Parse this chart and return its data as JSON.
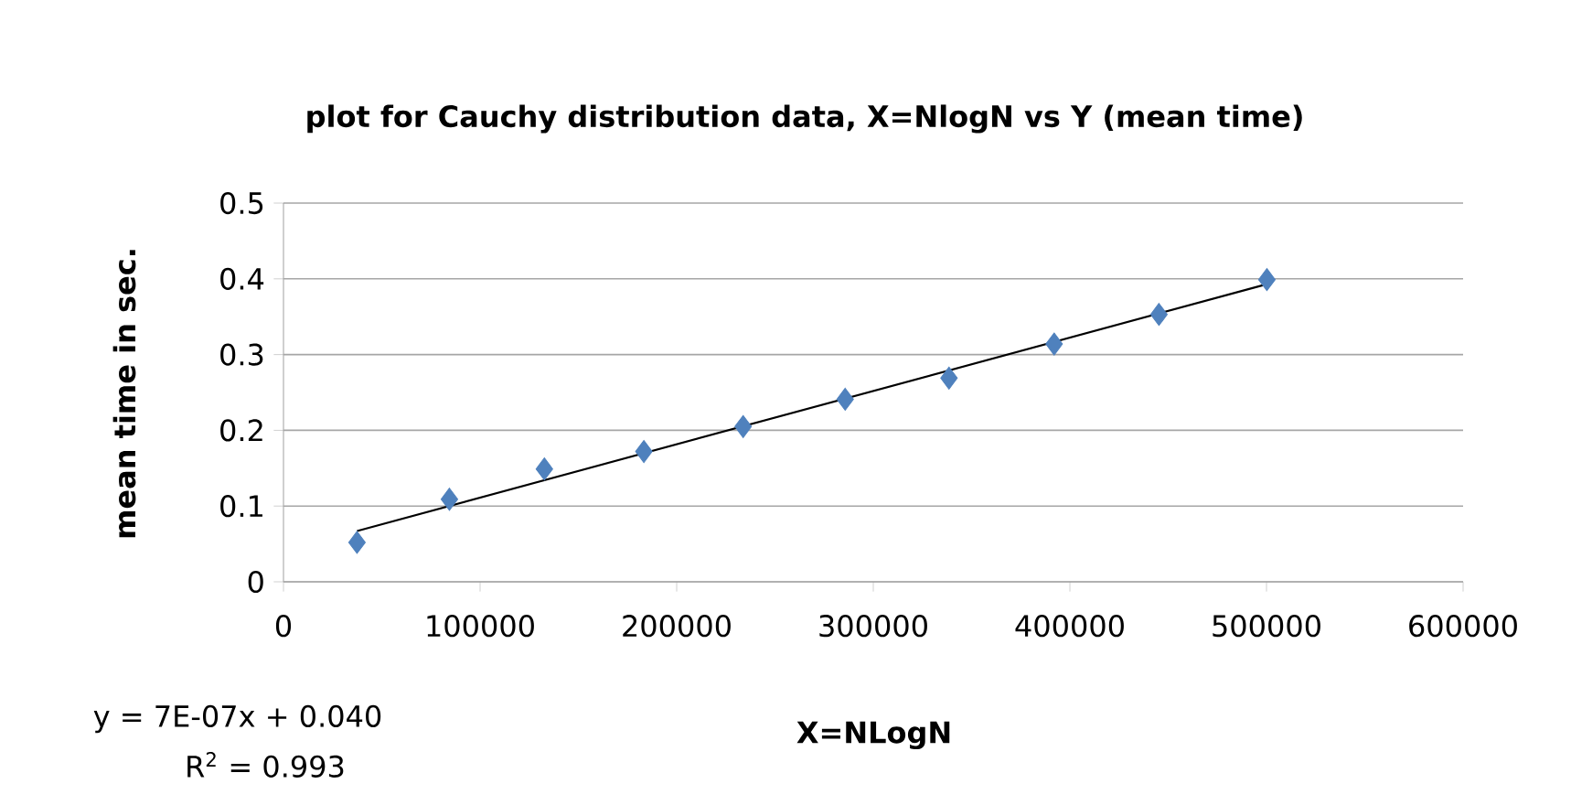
{
  "chart_data": {
    "type": "scatter",
    "title": "plot for Cauchy distribution data, X=NlogN vs Y (mean time)",
    "xlabel": "X=NLogN",
    "ylabel": "mean time in sec.",
    "annotations": [
      "y = 7E-07x + 0.040",
      "R$^{2}$ = 0.993"
    ],
    "series": [
      {
        "color": "#4f81bd",
        "marker": "diamond",
        "x": [
          37400,
          84400,
          132700,
          183300,
          233800,
          285700,
          338500,
          392000,
          445300,
          500200
        ],
        "values": [
          0.052,
          0.109,
          0.149,
          0.172,
          0.205,
          0.241,
          0.269,
          0.314,
          0.353,
          0.399
        ]
      },
      {
        "type": "line",
        "color": "#000000",
        "marker": "none",
        "line_style": "solid",
        "x": [
          37400,
          500200
        ],
        "values": [
          0.067,
          0.393
        ]
      }
    ],
    "xlim": [
      0,
      600000
    ],
    "ylim": [
      0,
      0.5
    ],
    "xticks": [
      0,
      100000,
      200000,
      300000,
      400000,
      500000,
      600000
    ],
    "yticks": [
      0,
      0.1,
      0.2,
      0.3,
      0.4,
      0.5
    ],
    "grid": "y"
  }
}
